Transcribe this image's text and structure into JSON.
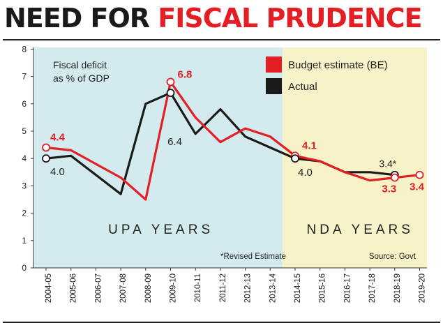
{
  "headline": {
    "part1": "NEED FOR ",
    "part2": "FISCAL PRUDENCE"
  },
  "colors": {
    "accent": "#e31e24",
    "dark": "#1a1a1a",
    "upa_band": "#d3ebee",
    "nda_band": "#f8f2c8"
  },
  "chart_data": {
    "type": "line",
    "title": "Fiscal deficit as % of GDP",
    "title_lines": [
      "Fiscal deficit",
      "as % of GDP"
    ],
    "xlabel": "",
    "ylabel": "",
    "categories": [
      "2004-05",
      "2005-06",
      "2006-07",
      "2007-08",
      "2008-09",
      "2009-10",
      "2010-11",
      "2011-12",
      "2012-13",
      "2013-14",
      "2014-15",
      "2015-16",
      "2016-17",
      "2017-18",
      "2018-19",
      "2019-20"
    ],
    "ylim": [
      0,
      8
    ],
    "yticks": [
      0,
      1,
      2,
      3,
      4,
      5,
      6,
      7,
      8
    ],
    "grid": false,
    "legend_position": "top-right",
    "series": [
      {
        "name": "Budget estimate (BE)",
        "color": "#e31e24",
        "values": [
          4.4,
          4.3,
          3.8,
          3.3,
          2.5,
          6.8,
          5.5,
          4.6,
          5.1,
          4.8,
          4.1,
          3.9,
          3.5,
          3.2,
          3.3,
          3.4
        ]
      },
      {
        "name": "Actual",
        "color": "#1a1a1a",
        "values": [
          4.0,
          4.1,
          3.4,
          2.7,
          6.0,
          6.4,
          4.9,
          5.8,
          4.8,
          4.4,
          4.0,
          3.9,
          3.5,
          3.5,
          3.4,
          null
        ]
      }
    ],
    "eras": [
      {
        "label": "UPA YEARS",
        "from": "2004-05",
        "to": "2013-14"
      },
      {
        "label": "NDA YEARS",
        "from": "2014-15",
        "to": "2019-20"
      }
    ],
    "annotations": [
      {
        "id": "be-2004",
        "series": 0,
        "index": 0,
        "text": "4.4"
      },
      {
        "id": "act-2004",
        "series": 1,
        "index": 0,
        "text": "4.0"
      },
      {
        "id": "be-2009",
        "series": 0,
        "index": 5,
        "text": "6.8"
      },
      {
        "id": "act-2009",
        "series": 1,
        "index": 5,
        "text": "6.4"
      },
      {
        "id": "be-2014",
        "series": 0,
        "index": 10,
        "text": "4.1"
      },
      {
        "id": "act-2014",
        "series": 1,
        "index": 10,
        "text": "4.0"
      },
      {
        "id": "act-2018",
        "series": 1,
        "index": 14,
        "text": "3.4*"
      },
      {
        "id": "be-2018",
        "series": 0,
        "index": 14,
        "text": "3.3"
      },
      {
        "id": "be-2019",
        "series": 0,
        "index": 15,
        "text": "3.4"
      }
    ],
    "notes": {
      "revised": "*Revised Estimate",
      "source": "Source: Govt"
    }
  }
}
